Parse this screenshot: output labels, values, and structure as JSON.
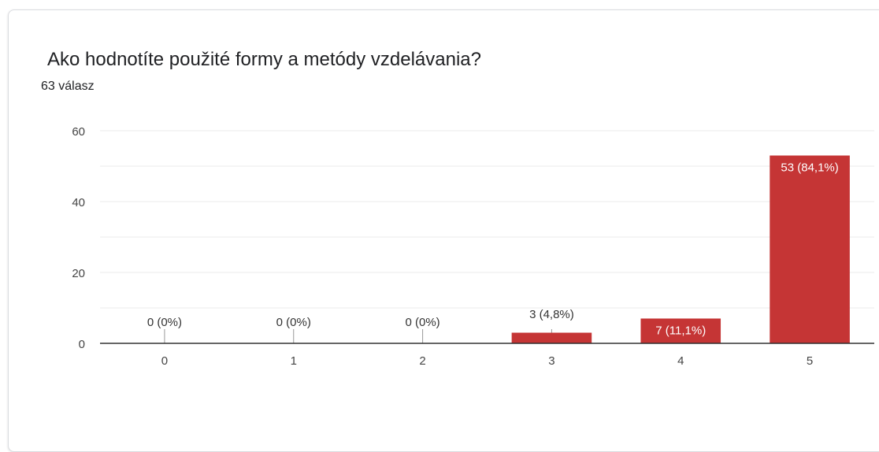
{
  "header": {
    "title": "Ako hodnotíte použité formy a metódy vzdelávania?",
    "response_count": "63 válasz"
  },
  "colors": {
    "bar": "#c53535",
    "axis": "#333333",
    "grid": "#ebebeb",
    "text": "#202124",
    "tick_text": "#444444"
  },
  "chart_data": {
    "type": "bar",
    "title": "Ako hodnotíte použité formy a metódy vzdelávania?",
    "xlabel": "",
    "ylabel": "",
    "categories": [
      "0",
      "1",
      "2",
      "3",
      "4",
      "5"
    ],
    "values": [
      0,
      0,
      0,
      3,
      7,
      53
    ],
    "data_labels": [
      "0 (0%)",
      "0 (0%)",
      "0 (0%)",
      "3 (4,8%)",
      "7 (11,1%)",
      "53 (84,1%)"
    ],
    "ylim": [
      0,
      60
    ],
    "yticks": [
      0,
      20,
      40,
      60
    ],
    "grid": true,
    "legend": "none"
  }
}
